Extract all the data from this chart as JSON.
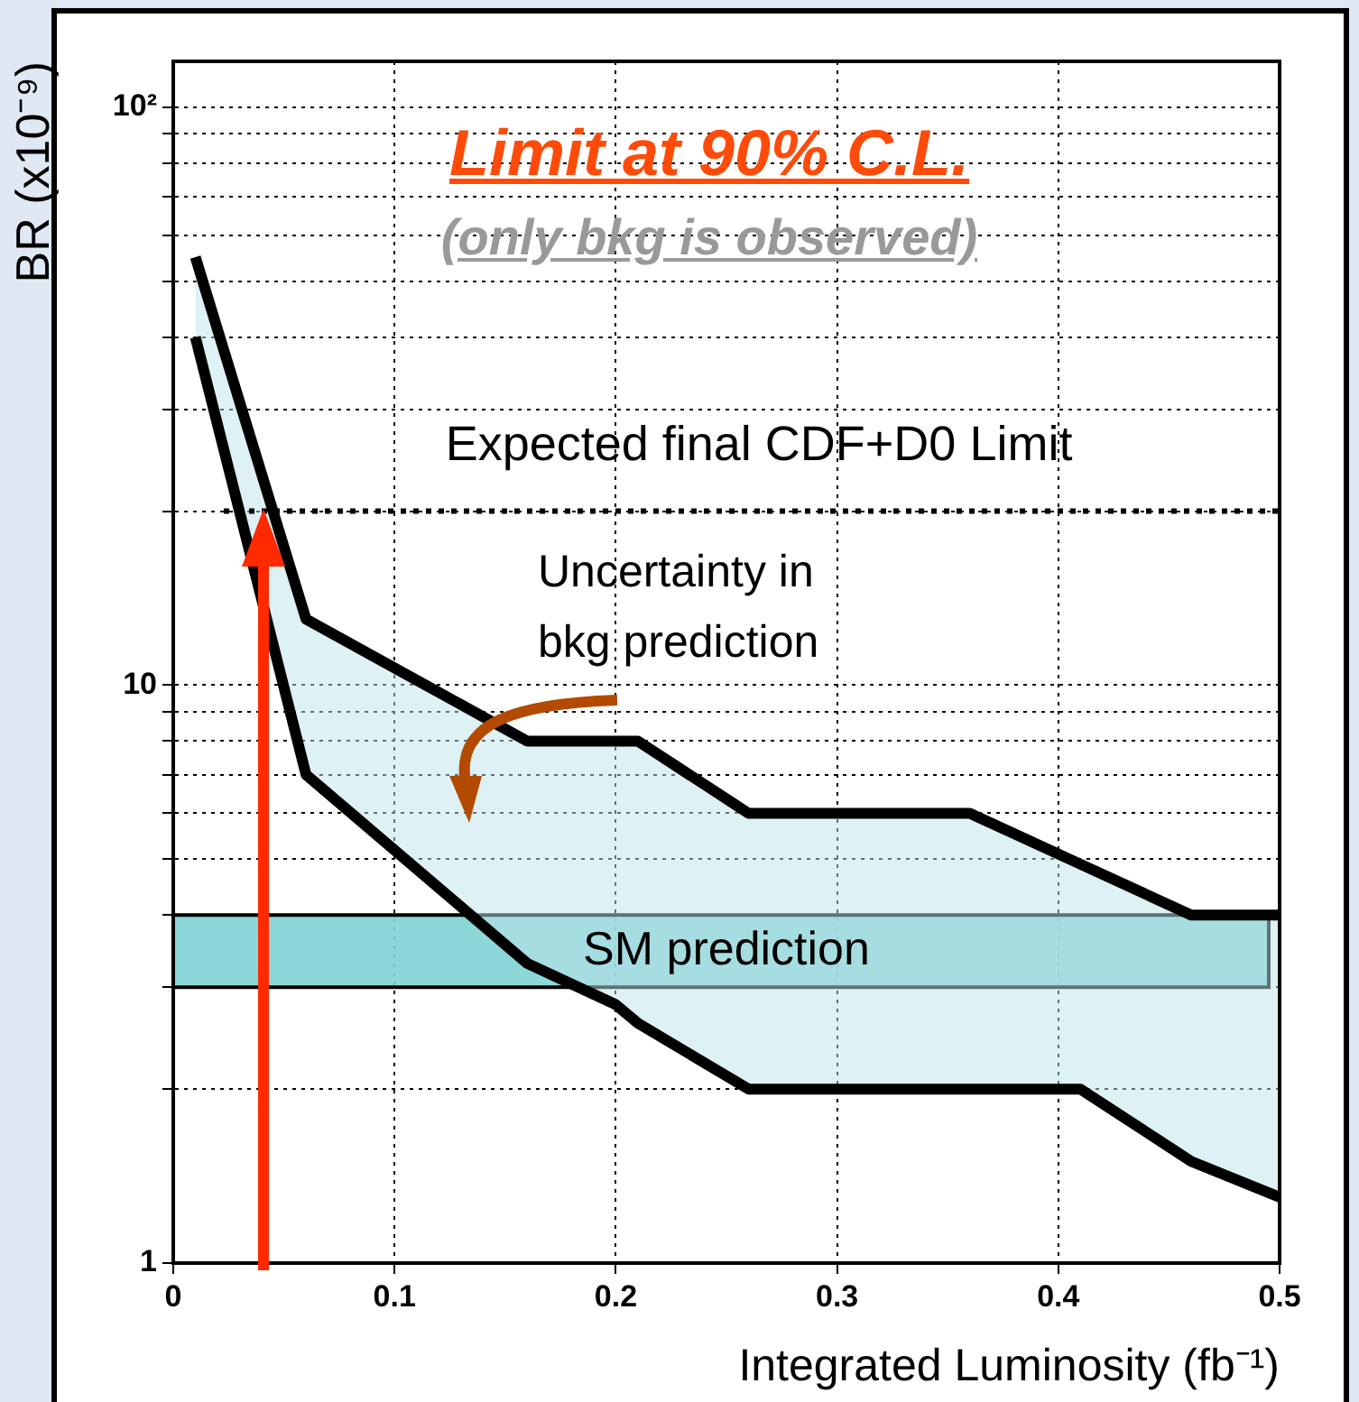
{
  "chart_data": {
    "type": "line",
    "title": "Limit at 90% C.L.",
    "subtitle": "(only bkg is observed)",
    "xlabel": "Integrated Luminosity (fb⁻¹)",
    "ylabel": "BR (x10⁻⁹)",
    "x": [
      0.01,
      0.06,
      0.16,
      0.2,
      0.21,
      0.26,
      0.36,
      0.41,
      0.46,
      0.5
    ],
    "series": [
      {
        "color": "#000000",
        "values": [
          55,
          13,
          8,
          8,
          8,
          6,
          6,
          4.9,
          4,
          4
        ],
        "lower": [
          40,
          7,
          3.3,
          2.8,
          2.6,
          2,
          2,
          2,
          1.5,
          1.3
        ],
        "upper": [
          55,
          13,
          8,
          8,
          8,
          6,
          6,
          4.9,
          4,
          4
        ]
      },
      {
        "color": "#000000",
        "values": [
          40,
          7,
          3.3,
          2.8,
          2.6,
          2,
          2,
          2,
          1.5,
          1.3
        ]
      }
    ],
    "xlim": [
      0,
      0.5
    ],
    "xticks": [
      0,
      0.1,
      0.2,
      0.3,
      0.4,
      0.5
    ],
    "ylim": [
      1,
      120
    ],
    "yticks": [
      1,
      {
        "value": 2,
        "label": null
      },
      {
        "value": 3,
        "label": null
      },
      {
        "value": 4,
        "label": null
      },
      {
        "value": 5,
        "label": null
      },
      {
        "value": 6,
        "label": null
      },
      {
        "value": 7,
        "label": null
      },
      {
        "value": 8,
        "label": null
      },
      {
        "value": 9,
        "label": null
      },
      10,
      {
        "value": 20,
        "label": null
      },
      {
        "value": 30,
        "label": null
      },
      {
        "value": 40,
        "label": null
      },
      {
        "value": 50,
        "label": null
      },
      {
        "value": 60,
        "label": null
      },
      {
        "value": 70,
        "label": null
      },
      {
        "value": 80,
        "label": null
      },
      {
        "value": 90,
        "label": null
      },
      {
        "value": 100,
        "label": "10²"
      }
    ],
    "log": "y",
    "grid": true,
    "legend": false,
    "marker": "none",
    "line_style": "solid",
    "ref_lines": [
      {
        "axis": "y",
        "value": 20,
        "label": "Expected final CDF+D0 Limit",
        "color": "#000000",
        "line_style": "dotted"
      }
    ],
    "bands": [
      {
        "axis": "y",
        "from": 3,
        "to": 4,
        "label": "SM prediction",
        "color": "#7fd3d3"
      }
    ],
    "annotations": [
      "Uncertainty in\nbkg prediction"
    ]
  }
}
